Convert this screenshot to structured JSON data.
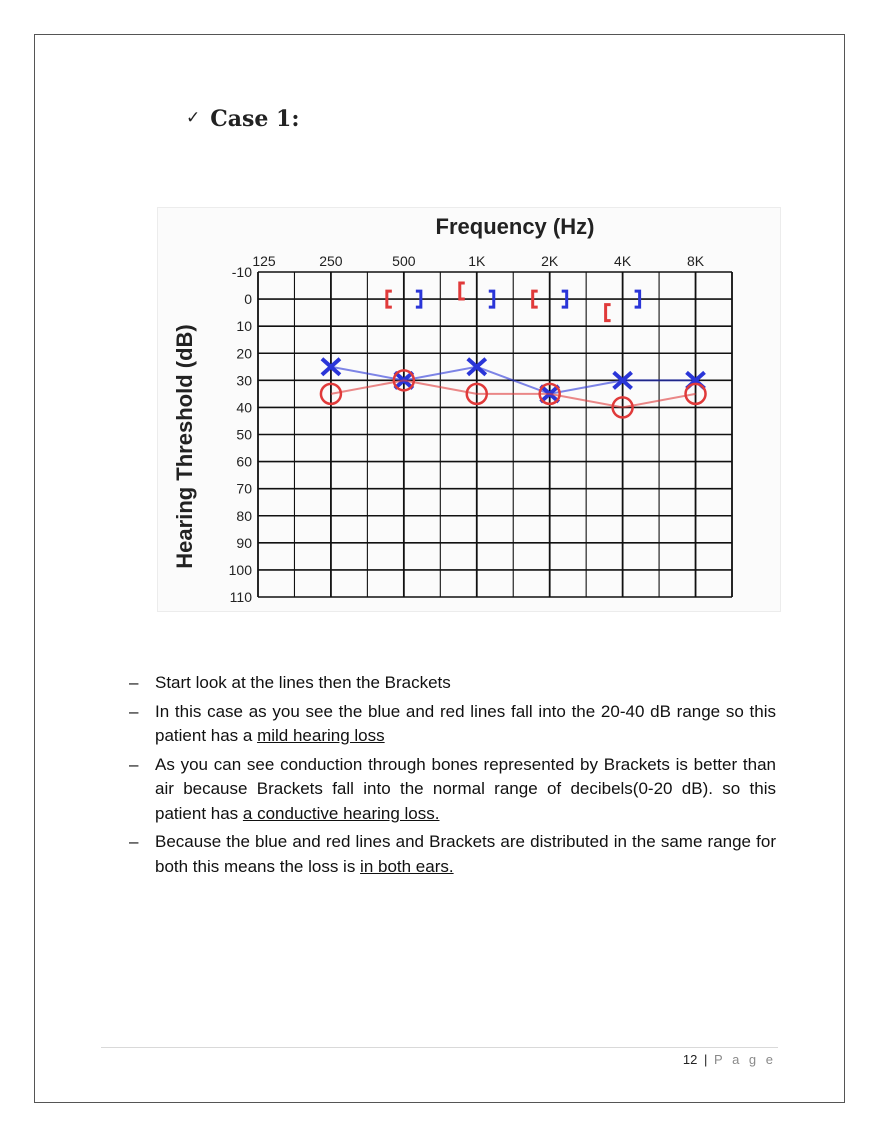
{
  "heading": {
    "check_icon": "checkmark-icon",
    "title": "Case 1:"
  },
  "chart_data": {
    "type": "scatter",
    "title": "Frequency (Hz)",
    "xlabel": "Frequency (Hz)",
    "ylabel": "Hearing Threshold (dB)",
    "x_tick_labels": [
      "125",
      "250",
      "500",
      "1K",
      "2K",
      "4K",
      "8K"
    ],
    "y_ticks": [
      -10,
      0,
      10,
      20,
      30,
      40,
      50,
      60,
      70,
      80,
      90,
      100,
      110
    ],
    "ylim": [
      -10,
      110
    ],
    "y_inverted": true,
    "grid": true,
    "series": [
      {
        "color": "#2a35d8",
        "marker": "x",
        "line": true,
        "x": [
          "250",
          "500",
          "1K",
          "2K",
          "4K",
          "8K"
        ],
        "y": [
          25,
          30,
          25,
          35,
          30,
          30
        ]
      },
      {
        "color": "#e03a3a",
        "marker": "o",
        "line": true,
        "x": [
          "250",
          "500",
          "1K",
          "2K",
          "4K",
          "8K"
        ],
        "y": [
          35,
          30,
          35,
          35,
          40,
          35
        ]
      },
      {
        "color": "#e03a3a",
        "marker": "[",
        "line": false,
        "x": [
          "500",
          "1K",
          "2K",
          "4K"
        ],
        "y": [
          0,
          -3,
          0,
          5
        ]
      },
      {
        "color": "#2a35d8",
        "marker": "]",
        "line": false,
        "x": [
          "500",
          "1K",
          "2K",
          "4K"
        ],
        "y": [
          0,
          0,
          0,
          0
        ]
      }
    ]
  },
  "bullets": [
    {
      "parts": [
        {
          "text": "Start look at the lines then the Brackets",
          "u": false
        }
      ]
    },
    {
      "parts": [
        {
          "text": "In this case as you see the blue and red lines fall into the 20-40 dB range so this patient has a ",
          "u": false
        },
        {
          "text": "mild hearing loss",
          "u": true
        }
      ]
    },
    {
      "parts": [
        {
          "text": "As you can see conduction through bones represented by Brackets is better than air because  Brackets fall into the normal range of decibels(0-20 dB). so  this patient has ",
          "u": false
        },
        {
          "text": "a conductive hearing loss.",
          "u": true
        }
      ]
    },
    {
      "parts": [
        {
          "text": "Because the blue and red lines and Brackets are distributed in the same range for both this means the loss is ",
          "u": false
        },
        {
          "text": "in both ears.",
          "u": true
        }
      ]
    }
  ],
  "bullet_marker": "–",
  "footer": {
    "page_number": "12",
    "separator": "|",
    "page_label": "P a g e"
  }
}
